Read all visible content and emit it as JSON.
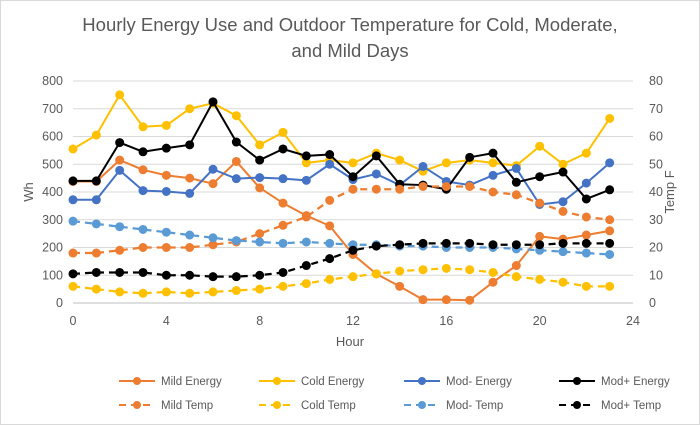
{
  "chart_data": {
    "type": "line",
    "title_lines": [
      "Hourly Energy Use and Outdoor Temperature for Cold, Moderate,",
      "and Mild Days"
    ],
    "xlabel": "Hour",
    "ylabel": "Wh",
    "y2label": "Temp F",
    "xlim": [
      0,
      24
    ],
    "ylim": [
      0,
      800
    ],
    "y2lim": [
      0,
      80
    ],
    "x_ticks": [
      "0",
      "4",
      "8",
      "12",
      "16",
      "20",
      "24"
    ],
    "y_ticks": [
      "0",
      "100",
      "200",
      "300",
      "400",
      "500",
      "600",
      "700",
      "800"
    ],
    "y2_ticks": [
      "0",
      "10",
      "20",
      "30",
      "40",
      "50",
      "60",
      "70",
      "80"
    ],
    "grid": "horizontal",
    "legend_position": "bottom",
    "x": [
      0,
      1,
      2,
      3,
      4,
      5,
      6,
      7,
      8,
      9,
      10,
      11,
      12,
      13,
      14,
      15,
      16,
      17,
      18,
      19,
      20,
      21,
      22,
      23
    ],
    "series": [
      {
        "name": "Mild Energy",
        "axis": "left",
        "color": "#ed7d31",
        "dash": false,
        "values": [
          438,
          438,
          515,
          480,
          460,
          450,
          430,
          510,
          415,
          360,
          315,
          278,
          175,
          105,
          60,
          12,
          12,
          10,
          75,
          135,
          240,
          230,
          245,
          260
        ]
      },
      {
        "name": "Cold Energy",
        "axis": "left",
        "color": "#ffc000",
        "dash": false,
        "values": [
          555,
          605,
          750,
          635,
          640,
          700,
          720,
          675,
          570,
          615,
          505,
          515,
          505,
          540,
          515,
          475,
          505,
          515,
          505,
          495,
          565,
          500,
          540,
          665
        ]
      },
      {
        "name": "Mod- Energy",
        "axis": "left",
        "color": "#4472c4",
        "dash": false,
        "values": [
          372,
          372,
          478,
          405,
          402,
          395,
          482,
          448,
          452,
          448,
          442,
          500,
          445,
          465,
          425,
          492,
          438,
          425,
          460,
          485,
          355,
          365,
          432,
          505
        ]
      },
      {
        "name": "Mod+ Energy",
        "axis": "left",
        "color": "#000000",
        "dash": false,
        "values": [
          440,
          440,
          578,
          545,
          558,
          570,
          725,
          580,
          515,
          555,
          530,
          535,
          455,
          530,
          428,
          425,
          410,
          525,
          540,
          435,
          455,
          472,
          375,
          408
        ]
      },
      {
        "name": "Mild Temp",
        "axis": "right",
        "color": "#ed7d31",
        "dash": true,
        "values": [
          18,
          18,
          19,
          20,
          20,
          20,
          21,
          22,
          25,
          28,
          31,
          37,
          41,
          41,
          41,
          42,
          42,
          42,
          40,
          39,
          36,
          33,
          31,
          30
        ]
      },
      {
        "name": "Cold Temp",
        "axis": "right",
        "color": "#ffc000",
        "dash": true,
        "values": [
          6,
          5,
          4,
          3.5,
          4,
          3.5,
          4,
          4.5,
          5,
          6,
          7,
          8.5,
          9.5,
          10.5,
          11.5,
          12,
          12.5,
          12,
          11,
          9.5,
          8.5,
          7.5,
          6,
          6
        ]
      },
      {
        "name": "Mod- Temp",
        "axis": "right",
        "color": "#5b9bd5",
        "dash": true,
        "values": [
          29.5,
          28.5,
          27.5,
          26.5,
          25.5,
          24.5,
          23.5,
          22.5,
          22,
          21.5,
          22,
          21.5,
          21,
          21,
          20.5,
          20.5,
          20,
          20,
          20,
          19.5,
          19,
          18.5,
          18,
          17.5
        ]
      },
      {
        "name": "Mod+ Temp",
        "axis": "right",
        "color": "#000000",
        "dash": true,
        "values": [
          10.5,
          11,
          11,
          11,
          10,
          10,
          9.5,
          9.5,
          10,
          11,
          13.5,
          16,
          19,
          20.5,
          21,
          21.5,
          21.5,
          21.5,
          21,
          21,
          21,
          21.5,
          21.5,
          21.5
        ]
      }
    ]
  }
}
